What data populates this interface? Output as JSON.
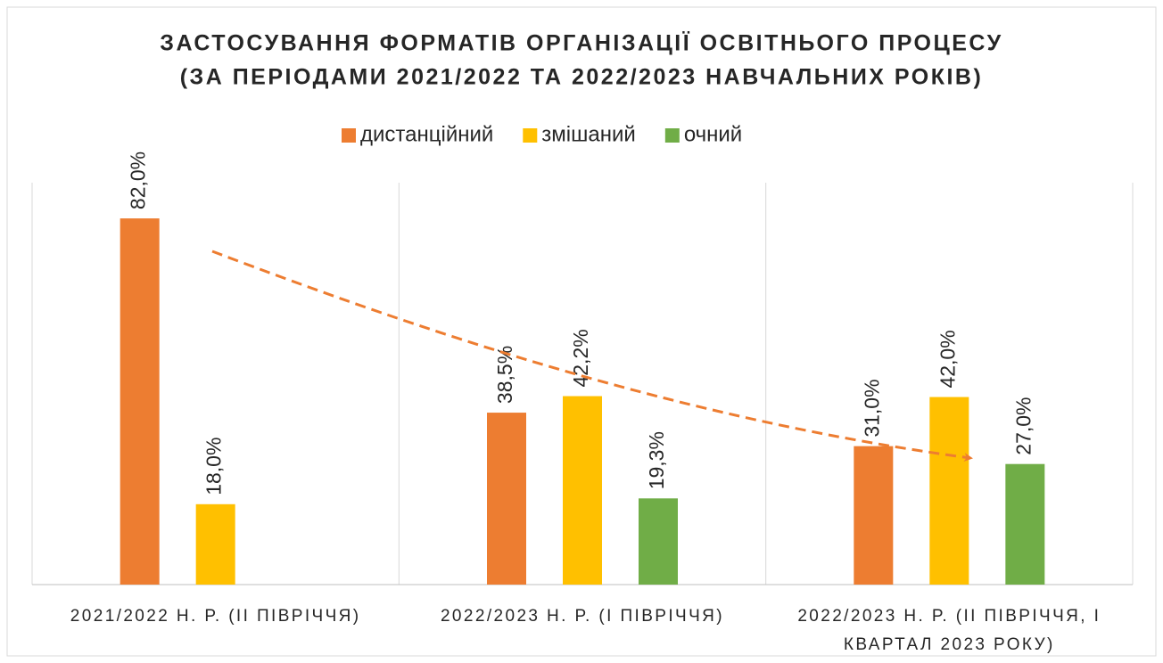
{
  "chart_data": {
    "type": "bar",
    "title": [
      "ЗАСТОСУВАННЯ ФОРМАТІВ ОРГАНІЗАЦІЇ ОСВІТНЬОГО ПРОЦЕСУ",
      "(ЗА ПЕРІОДАМИ 2021/2022 ТА 2022/2023 НАВЧАЛЬНИХ РОКІВ)"
    ],
    "categories": [
      "2021/2022 Н. Р. (ІІ ПІВРІЧЧЯ)",
      "2022/2023 Н. Р. (І ПІВРІЧЧЯ)",
      "2022/2023 Н. Р. (ІІ ПІВРІЧЧЯ, І КВАРТАЛ 2023 РОКУ)"
    ],
    "series": [
      {
        "name": "дистанційний",
        "color": "#ED7D31",
        "values": [
          82.0,
          38.5,
          31.0
        ],
        "value_labels": [
          "82,0%",
          "38,5%",
          "31,0%"
        ]
      },
      {
        "name": "змішаний",
        "color": "#FFC000",
        "values": [
          18.0,
          42.2,
          42.0
        ],
        "value_labels": [
          "18,0%",
          "42,2%",
          "42,0%"
        ]
      },
      {
        "name": "очний",
        "color": "#70AD47",
        "values": [
          null,
          19.3,
          27.0
        ],
        "value_labels": [
          null,
          "19,3%",
          "27,0%"
        ]
      }
    ],
    "ylim": [
      0,
      90
    ],
    "legend": "top"
  }
}
